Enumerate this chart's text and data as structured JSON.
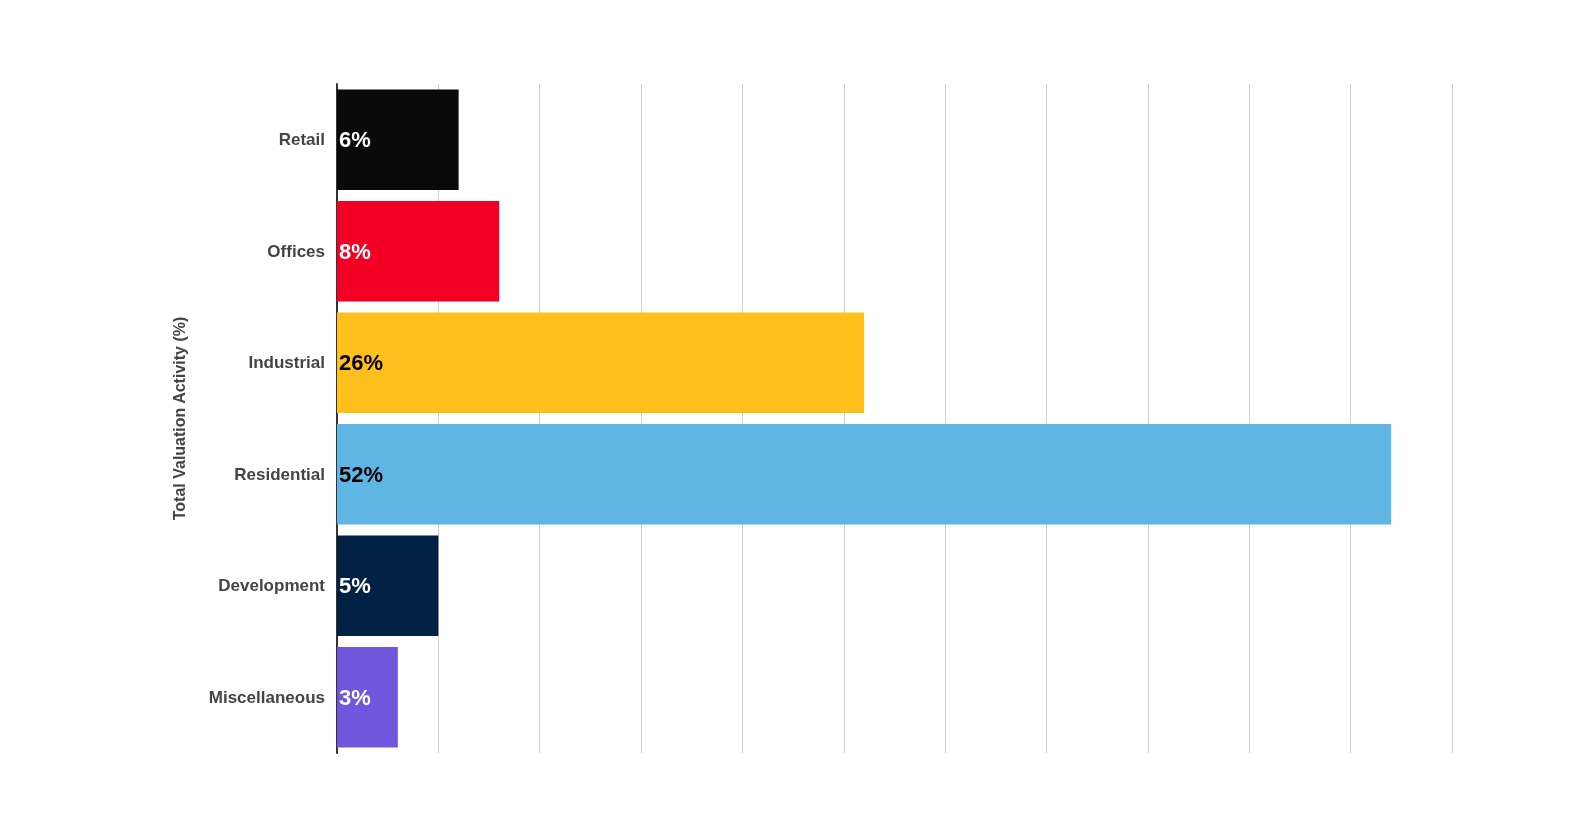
{
  "chart_data": {
    "type": "bar",
    "orientation": "horizontal",
    "ylabel": "Total Valuation Activity (%)",
    "categories": [
      "Retail",
      "Offices",
      "Industrial",
      "Residential",
      "Development",
      "Miscellaneous"
    ],
    "values": [
      6,
      8,
      26,
      52,
      5,
      3
    ],
    "colors": [
      "#0a0a0a",
      "#f50025",
      "#ffc01e",
      "#5fb6e4",
      "#002044",
      "#6f56dc"
    ],
    "value_labels": [
      "6%",
      "8%",
      "26%",
      "52%",
      "5%",
      "3%"
    ],
    "xlim": [
      0,
      55
    ],
    "xticks": [
      {
        "value": 0,
        "label": null
      },
      {
        "value": 5,
        "label": null
      },
      {
        "value": 10,
        "label": null
      },
      {
        "value": 15,
        "label": null
      },
      {
        "value": 20,
        "label": null
      },
      {
        "value": 25,
        "label": null
      },
      {
        "value": 30,
        "label": null
      },
      {
        "value": 35,
        "label": null
      },
      {
        "value": 40,
        "label": null
      },
      {
        "value": 45,
        "label": null
      },
      {
        "value": 50,
        "label": null
      },
      {
        "value": 55,
        "label": null
      }
    ],
    "grid": "x",
    "tick_labels": "y"
  }
}
